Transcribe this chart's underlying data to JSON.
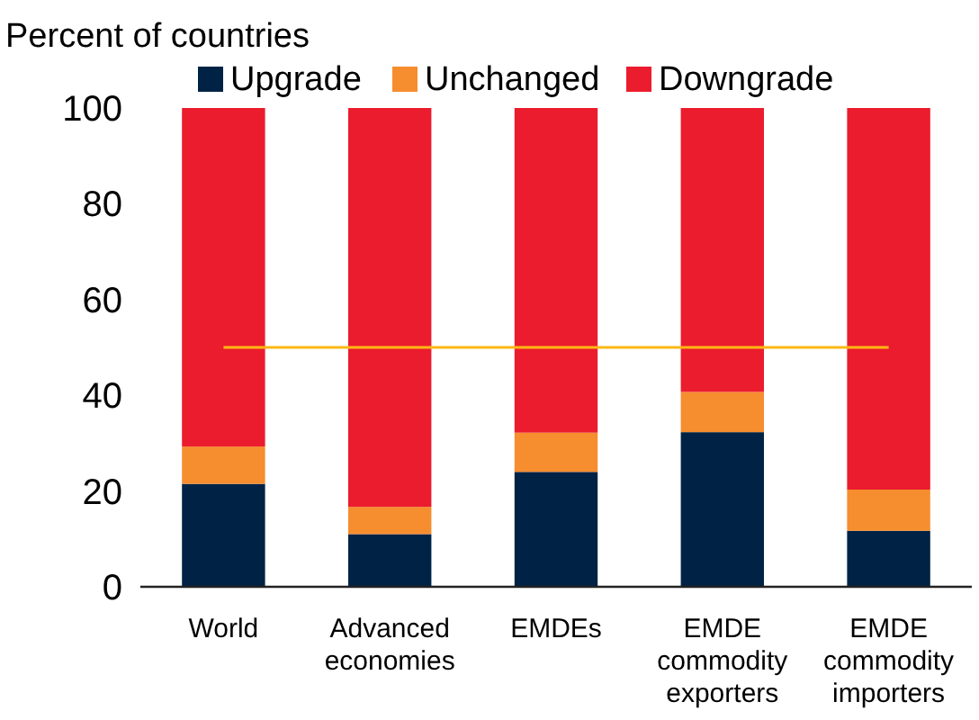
{
  "chart_data": {
    "type": "bar",
    "stacked": true,
    "ylabel": "Percent of countries",
    "categories": [
      "World",
      "Advanced economies",
      "EMDEs",
      "EMDE commodity exporters",
      "EMDE commodity importers"
    ],
    "series": [
      {
        "name": "Upgrade",
        "color": "#002345",
        "values": [
          21.5,
          11,
          24,
          32.3,
          11.7
        ]
      },
      {
        "name": "Unchanged",
        "color": "#f68d2e",
        "values": [
          7.8,
          5.7,
          8.2,
          8.4,
          8.6
        ]
      },
      {
        "name": "Downgrade",
        "color": "#eb1c2d",
        "values": [
          70.7,
          83.3,
          67.8,
          59.3,
          79.7
        ]
      }
    ],
    "ylim": [
      0,
      100
    ],
    "yticks": [
      0,
      20,
      40,
      60,
      80,
      100
    ],
    "grid": false,
    "legend": "top",
    "ref_lines": [
      {
        "axis": "y",
        "value": 50,
        "color": "#fdb714"
      }
    ]
  }
}
